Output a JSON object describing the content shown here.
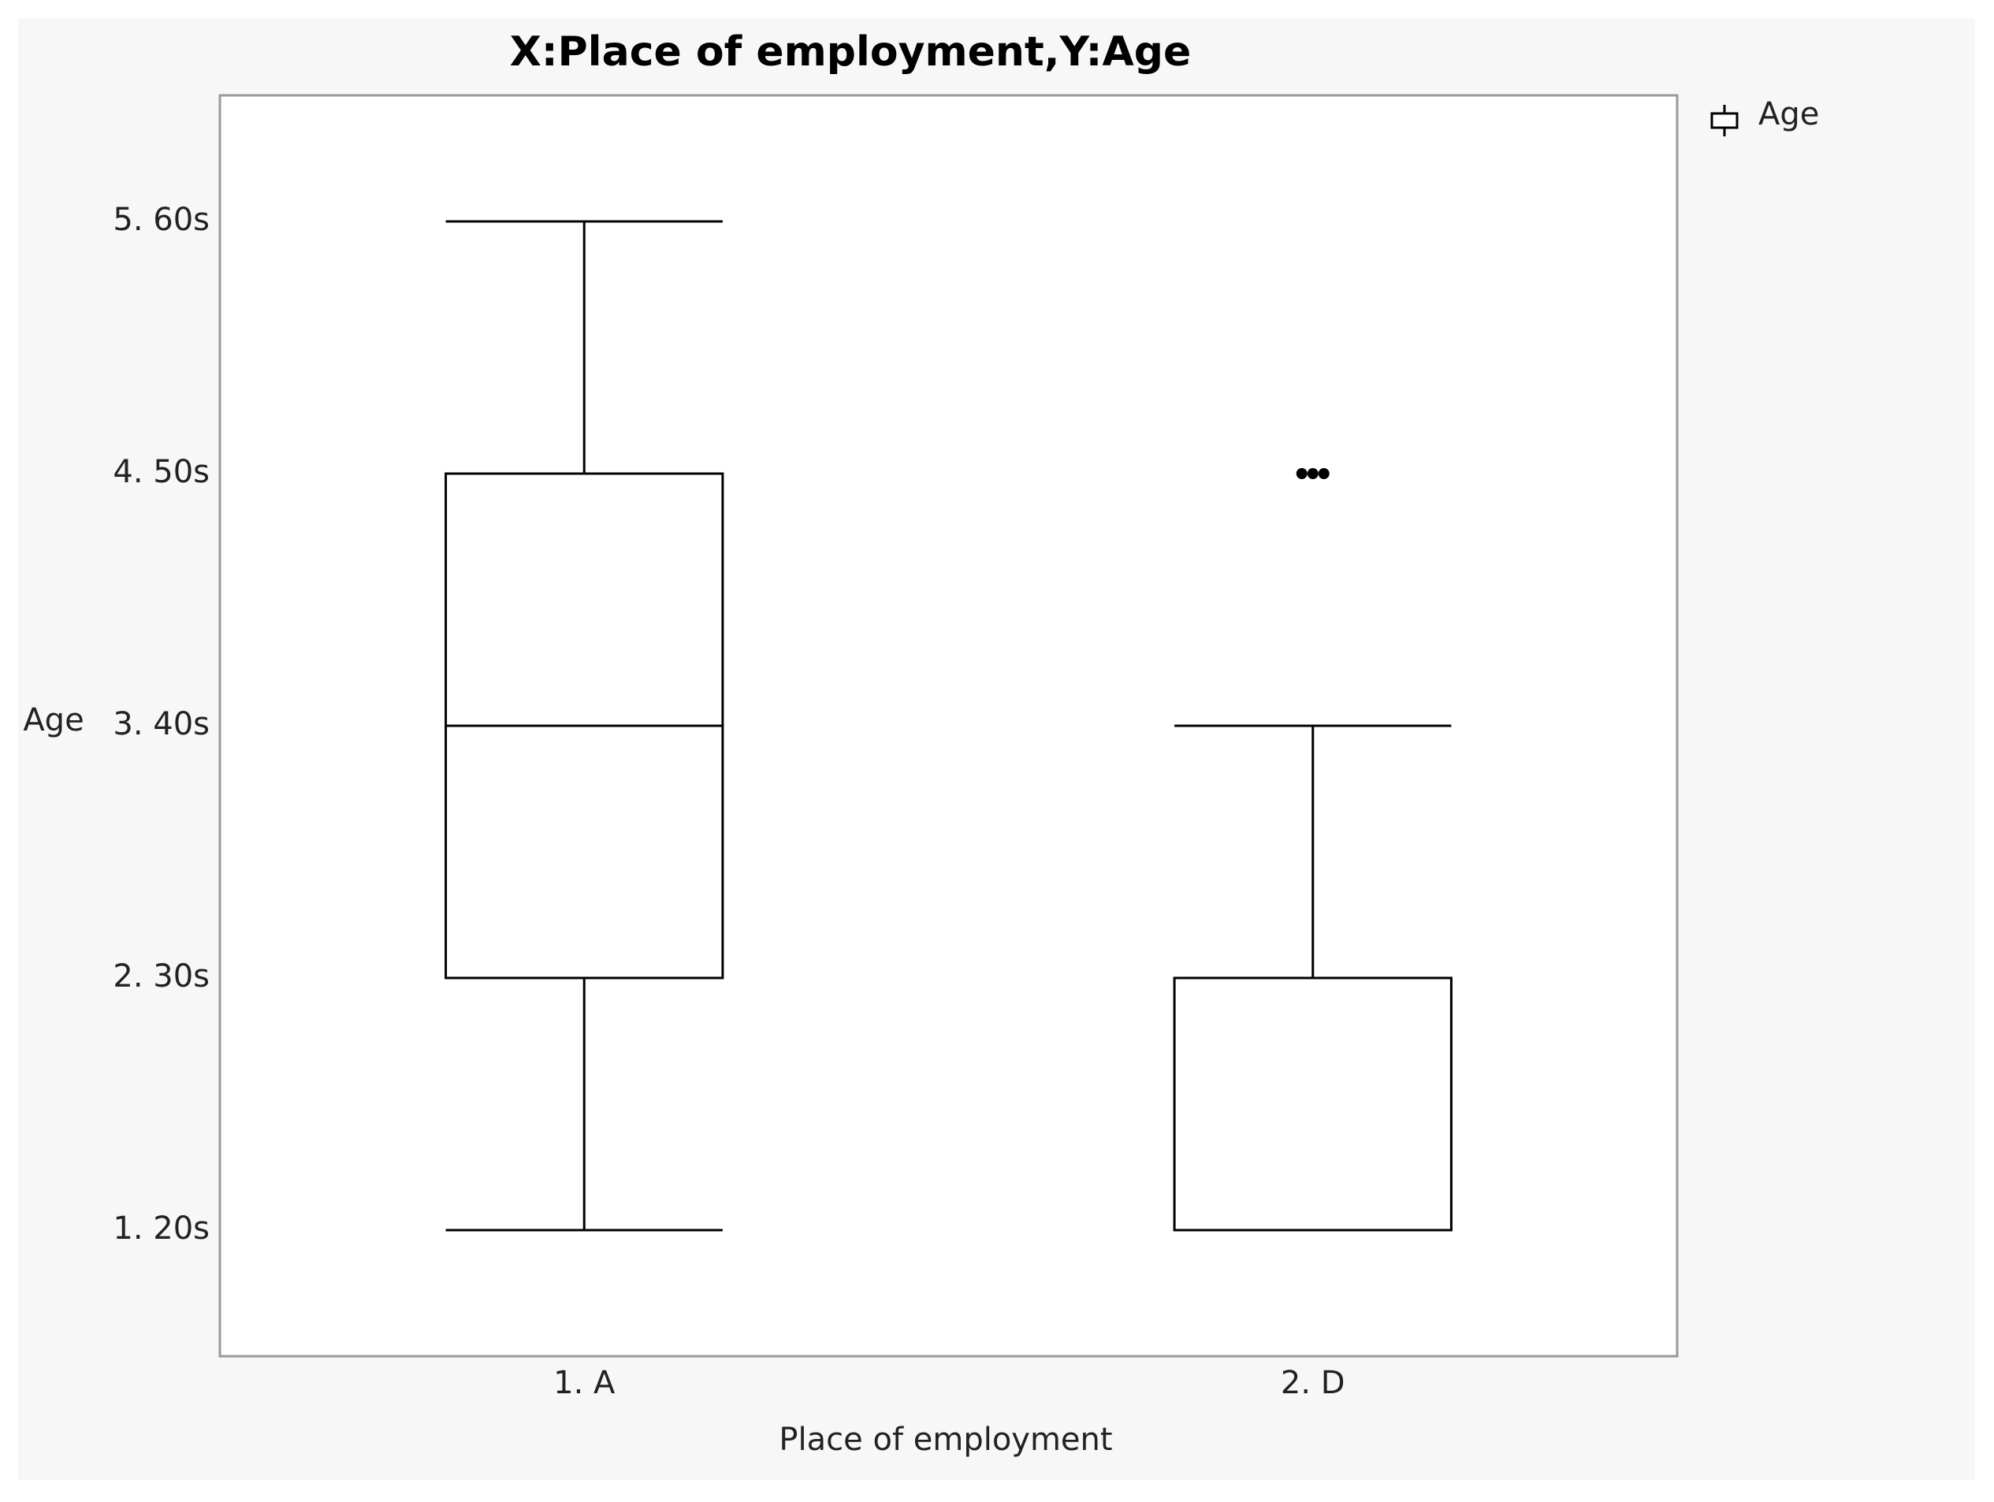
{
  "chart_data": {
    "type": "box",
    "title": "X:Place of employment,Y:Age",
    "x_label": "Place of employment",
    "y_label": "Age",
    "categories": [
      "1. A",
      "2. D"
    ],
    "series": [
      {
        "name": "Age",
        "color": "#000000",
        "min": [
          1,
          1
        ],
        "q1": [
          2,
          1
        ],
        "median": [
          3,
          1
        ],
        "q3": [
          4,
          2
        ],
        "max": [
          5,
          3
        ],
        "outliers": [
          [],
          [
            4,
            4,
            4
          ]
        ]
      }
    ],
    "ylim": [
      0.5,
      5.5
    ],
    "yticks": [
      {
        "value": 1,
        "label": "1. 20s"
      },
      {
        "value": 2,
        "label": "2. 30s"
      },
      {
        "value": 3,
        "label": "3. 40s"
      },
      {
        "value": 4,
        "label": "4. 50s"
      },
      {
        "value": 5,
        "label": "5. 60s"
      }
    ],
    "grid": false,
    "legend": "right"
  }
}
